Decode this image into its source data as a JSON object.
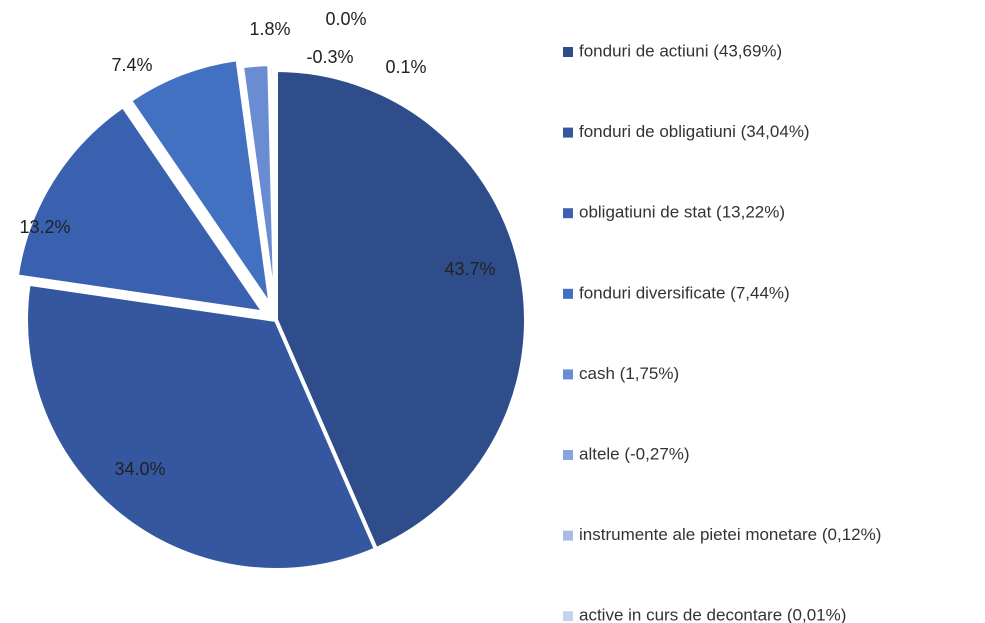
{
  "chart_data": {
    "type": "pie",
    "categories": [
      "fonduri de actiuni (43,69%)",
      "fonduri de obligatiuni (34,04%)",
      "obligatiuni de stat (13,22%)",
      "fonduri diversificate (7,44%)",
      "cash  (1,75%)",
      "altele (-0,27%)",
      "instrumente ale pietei monetare (0,12%)",
      "active in curs de decontare (0,01%)"
    ],
    "values": [
      43.69,
      34.04,
      13.22,
      7.44,
      1.75,
      -0.27,
      0.12,
      0.01
    ],
    "value_labels": [
      "43.7%",
      "34.0%",
      "13.2%",
      "7.4%",
      "1.8%",
      "-0.3%",
      "0.1%",
      "0.0%"
    ],
    "colors": [
      "#2f4d8a",
      "#3457a0",
      "#3a61b0",
      "#4371c2",
      "#6a8cd2",
      "#8aa3db",
      "#a8bbe4",
      "#c6d3ee"
    ],
    "legend": "right"
  }
}
